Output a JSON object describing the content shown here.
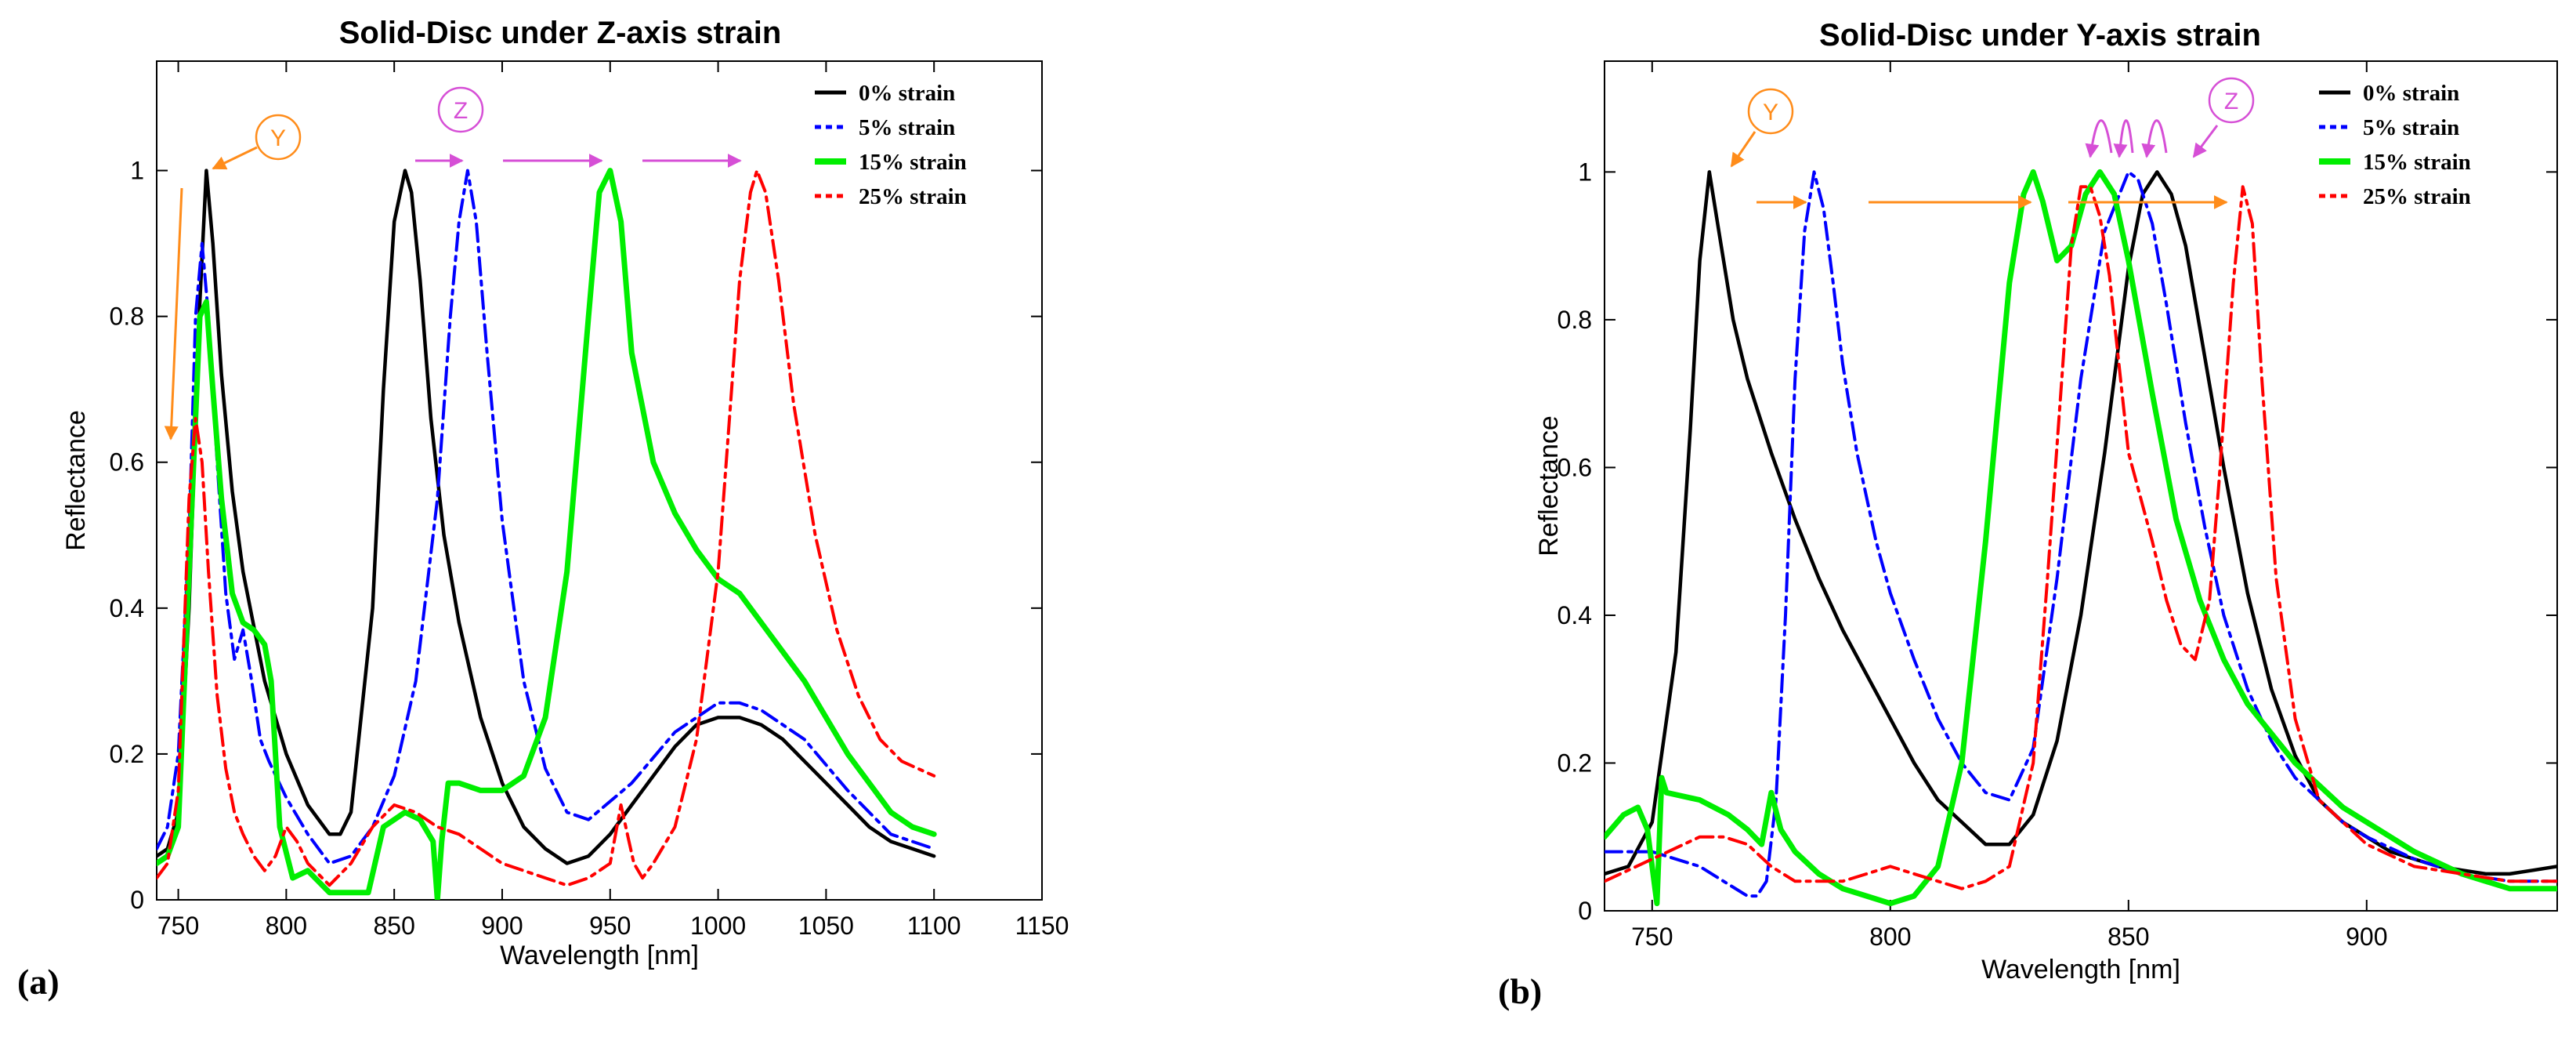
{
  "colors": {
    "s0": "#000000",
    "s5": "#0000ff",
    "s15": "#00ee00",
    "s25": "#ff0000",
    "orange": "#ff8c1a",
    "magenta": "#d64fd6"
  },
  "chart_data": [
    {
      "type": "line",
      "panel": "(a)",
      "title": "Solid-Disc under Z-axis strain",
      "xlabel": "Wavelength [nm]",
      "ylabel": "Reflectance",
      "xlim": [
        740,
        1150
      ],
      "ylim": [
        0,
        1.15
      ],
      "xticks": [
        750,
        800,
        850,
        900,
        950,
        1000,
        1050,
        1100,
        1150
      ],
      "yticks": [
        0,
        0.2,
        0.4,
        0.6,
        0.8,
        1
      ],
      "legend_position": "top-right",
      "annotations": [
        "Y",
        "Z"
      ],
      "series": [
        {
          "name": "0% strain",
          "style": "solid",
          "color": "#000000",
          "x": [
            740,
            745,
            750,
            755,
            760,
            763,
            766,
            770,
            775,
            780,
            790,
            800,
            810,
            820,
            825,
            830,
            840,
            845,
            850,
            855,
            858,
            862,
            867,
            873,
            880,
            890,
            900,
            910,
            920,
            930,
            940,
            950,
            960,
            970,
            980,
            990,
            1000,
            1010,
            1020,
            1030,
            1040,
            1050,
            1060,
            1070,
            1080,
            1090,
            1100
          ],
          "y": [
            0.06,
            0.07,
            0.12,
            0.4,
            0.82,
            1.0,
            0.9,
            0.72,
            0.56,
            0.45,
            0.3,
            0.2,
            0.13,
            0.09,
            0.09,
            0.12,
            0.4,
            0.7,
            0.93,
            1.0,
            0.97,
            0.85,
            0.66,
            0.5,
            0.38,
            0.25,
            0.16,
            0.1,
            0.07,
            0.05,
            0.06,
            0.09,
            0.13,
            0.17,
            0.21,
            0.24,
            0.25,
            0.25,
            0.24,
            0.22,
            0.19,
            0.16,
            0.13,
            0.1,
            0.08,
            0.07,
            0.06
          ]
        },
        {
          "name": "5% strain",
          "style": "dashdot",
          "color": "#0000ff",
          "x": [
            740,
            745,
            750,
            755,
            758,
            761,
            764,
            768,
            772,
            776,
            780,
            784,
            788,
            792,
            800,
            810,
            820,
            830,
            840,
            850,
            860,
            870,
            876,
            880,
            884,
            888,
            893,
            900,
            910,
            920,
            930,
            940,
            960,
            980,
            1000,
            1010,
            1020,
            1040,
            1060,
            1080,
            1100
          ],
          "y": [
            0.07,
            0.1,
            0.2,
            0.5,
            0.8,
            0.9,
            0.8,
            0.6,
            0.42,
            0.33,
            0.37,
            0.3,
            0.22,
            0.19,
            0.14,
            0.09,
            0.05,
            0.06,
            0.1,
            0.17,
            0.3,
            0.55,
            0.8,
            0.93,
            1.0,
            0.93,
            0.75,
            0.52,
            0.3,
            0.18,
            0.12,
            0.11,
            0.16,
            0.23,
            0.27,
            0.27,
            0.26,
            0.22,
            0.15,
            0.09,
            0.07
          ]
        },
        {
          "name": "15% strain",
          "style": "solid-thick",
          "color": "#00ee00",
          "x": [
            740,
            745,
            750,
            755,
            760,
            763,
            766,
            770,
            775,
            780,
            785,
            790,
            793,
            797,
            803,
            810,
            820,
            830,
            838,
            845,
            855,
            862,
            868,
            870,
            872,
            875,
            880,
            890,
            900,
            910,
            920,
            930,
            940,
            945,
            950,
            955,
            960,
            970,
            980,
            990,
            1000,
            1010,
            1020,
            1040,
            1060,
            1080,
            1090,
            1100
          ],
          "y": [
            0.05,
            0.06,
            0.1,
            0.45,
            0.8,
            0.82,
            0.7,
            0.55,
            0.42,
            0.38,
            0.37,
            0.35,
            0.3,
            0.1,
            0.03,
            0.04,
            0.01,
            0.01,
            0.01,
            0.1,
            0.12,
            0.11,
            0.08,
            0.0,
            0.08,
            0.16,
            0.16,
            0.15,
            0.15,
            0.17,
            0.25,
            0.45,
            0.8,
            0.97,
            1.0,
            0.93,
            0.75,
            0.6,
            0.53,
            0.48,
            0.44,
            0.42,
            0.38,
            0.3,
            0.2,
            0.12,
            0.1,
            0.09
          ]
        },
        {
          "name": "25% strain",
          "style": "dashdot",
          "color": "#ff0000",
          "x": [
            740,
            745,
            750,
            755,
            758,
            761,
            764,
            768,
            772,
            776,
            780,
            785,
            790,
            795,
            800,
            805,
            810,
            820,
            830,
            840,
            850,
            860,
            870,
            880,
            890,
            900,
            910,
            920,
            930,
            940,
            950,
            955,
            958,
            961,
            965,
            970,
            980,
            990,
            1000,
            1005,
            1010,
            1015,
            1018,
            1022,
            1028,
            1035,
            1045,
            1055,
            1065,
            1075,
            1085,
            1100
          ],
          "y": [
            0.03,
            0.05,
            0.15,
            0.55,
            0.66,
            0.6,
            0.45,
            0.28,
            0.18,
            0.12,
            0.09,
            0.06,
            0.04,
            0.06,
            0.1,
            0.08,
            0.05,
            0.02,
            0.05,
            0.1,
            0.13,
            0.12,
            0.1,
            0.09,
            0.07,
            0.05,
            0.04,
            0.03,
            0.02,
            0.03,
            0.05,
            0.13,
            0.09,
            0.05,
            0.03,
            0.05,
            0.1,
            0.22,
            0.45,
            0.65,
            0.85,
            0.97,
            1.0,
            0.97,
            0.85,
            0.68,
            0.5,
            0.37,
            0.28,
            0.22,
            0.19,
            0.17
          ]
        }
      ]
    },
    {
      "type": "line",
      "panel": "(b)",
      "title": "Solid-Disc under Y-axis strain",
      "xlabel": "Wavelength [nm]",
      "ylabel": "Reflectance",
      "xlim": [
        740,
        940
      ],
      "ylim": [
        0,
        1.15
      ],
      "xticks": [
        750,
        800,
        850,
        900
      ],
      "yticks": [
        0,
        0.2,
        0.4,
        0.6,
        0.8,
        1
      ],
      "legend_position": "top-right",
      "annotations": [
        "Y",
        "Z"
      ],
      "series": [
        {
          "name": "0% strain",
          "style": "solid",
          "color": "#000000",
          "x": [
            740,
            745,
            750,
            755,
            758,
            760,
            762,
            764,
            767,
            770,
            775,
            780,
            785,
            790,
            795,
            800,
            805,
            810,
            815,
            820,
            825,
            830,
            835,
            840,
            845,
            850,
            853,
            856,
            859,
            862,
            866,
            870,
            875,
            880,
            885,
            890,
            895,
            900,
            905,
            910,
            915,
            920,
            925,
            930,
            935,
            940
          ],
          "y": [
            0.05,
            0.06,
            0.12,
            0.35,
            0.65,
            0.88,
            1.0,
            0.92,
            0.8,
            0.72,
            0.62,
            0.53,
            0.45,
            0.38,
            0.32,
            0.26,
            0.2,
            0.15,
            0.12,
            0.09,
            0.09,
            0.13,
            0.23,
            0.4,
            0.62,
            0.87,
            0.97,
            1.0,
            0.97,
            0.9,
            0.75,
            0.6,
            0.43,
            0.3,
            0.21,
            0.15,
            0.12,
            0.1,
            0.08,
            0.07,
            0.06,
            0.055,
            0.05,
            0.05,
            0.055,
            0.06
          ]
        },
        {
          "name": "5% strain",
          "style": "dashdot",
          "color": "#0000ff",
          "x": [
            740,
            750,
            760,
            765,
            770,
            772,
            774,
            776,
            778,
            780,
            782,
            784,
            786,
            788,
            790,
            793,
            797,
            800,
            805,
            810,
            815,
            820,
            825,
            830,
            835,
            840,
            845,
            850,
            852,
            855,
            858,
            862,
            866,
            870,
            875,
            880,
            885,
            890,
            895,
            900,
            910,
            920,
            930,
            940
          ],
          "y": [
            0.08,
            0.08,
            0.06,
            0.04,
            0.02,
            0.02,
            0.04,
            0.15,
            0.4,
            0.72,
            0.92,
            1.0,
            0.95,
            0.85,
            0.74,
            0.62,
            0.5,
            0.43,
            0.34,
            0.26,
            0.2,
            0.16,
            0.15,
            0.22,
            0.45,
            0.72,
            0.92,
            1.0,
            0.99,
            0.93,
            0.82,
            0.66,
            0.52,
            0.4,
            0.3,
            0.23,
            0.18,
            0.15,
            0.12,
            0.1,
            0.07,
            0.05,
            0.04,
            0.04
          ]
        },
        {
          "name": "15% strain",
          "style": "solid-thick",
          "color": "#00ee00",
          "x": [
            740,
            744,
            747,
            749,
            751,
            752,
            753,
            760,
            766,
            770,
            773,
            775,
            777,
            780,
            785,
            790,
            795,
            800,
            805,
            810,
            815,
            820,
            825,
            828,
            830,
            832,
            835,
            838,
            841,
            844,
            847,
            850,
            855,
            860,
            865,
            870,
            875,
            880,
            885,
            890,
            895,
            900,
            910,
            920,
            930,
            940
          ],
          "y": [
            0.1,
            0.13,
            0.14,
            0.11,
            0.01,
            0.18,
            0.16,
            0.15,
            0.13,
            0.11,
            0.09,
            0.16,
            0.11,
            0.08,
            0.05,
            0.03,
            0.02,
            0.01,
            0.02,
            0.06,
            0.2,
            0.5,
            0.85,
            0.97,
            1.0,
            0.96,
            0.88,
            0.9,
            0.97,
            1.0,
            0.97,
            0.88,
            0.7,
            0.53,
            0.42,
            0.34,
            0.28,
            0.24,
            0.2,
            0.17,
            0.14,
            0.12,
            0.08,
            0.05,
            0.03,
            0.03
          ]
        },
        {
          "name": "25% strain",
          "style": "dashdot",
          "color": "#ff0000",
          "x": [
            740,
            750,
            760,
            765,
            770,
            775,
            780,
            785,
            790,
            795,
            800,
            805,
            810,
            815,
            820,
            825,
            830,
            833,
            836,
            838,
            840,
            842,
            844,
            846,
            848,
            850,
            855,
            858,
            861,
            864,
            867,
            869,
            872,
            874,
            876,
            878,
            881,
            885,
            890,
            900,
            910,
            920,
            930,
            940
          ],
          "y": [
            0.04,
            0.07,
            0.1,
            0.1,
            0.09,
            0.06,
            0.04,
            0.04,
            0.04,
            0.05,
            0.06,
            0.05,
            0.04,
            0.03,
            0.04,
            0.06,
            0.2,
            0.45,
            0.72,
            0.9,
            0.98,
            0.98,
            0.94,
            0.86,
            0.74,
            0.62,
            0.5,
            0.42,
            0.36,
            0.34,
            0.42,
            0.58,
            0.85,
            0.98,
            0.93,
            0.72,
            0.45,
            0.26,
            0.15,
            0.09,
            0.06,
            0.05,
            0.04,
            0.04
          ]
        }
      ]
    }
  ]
}
